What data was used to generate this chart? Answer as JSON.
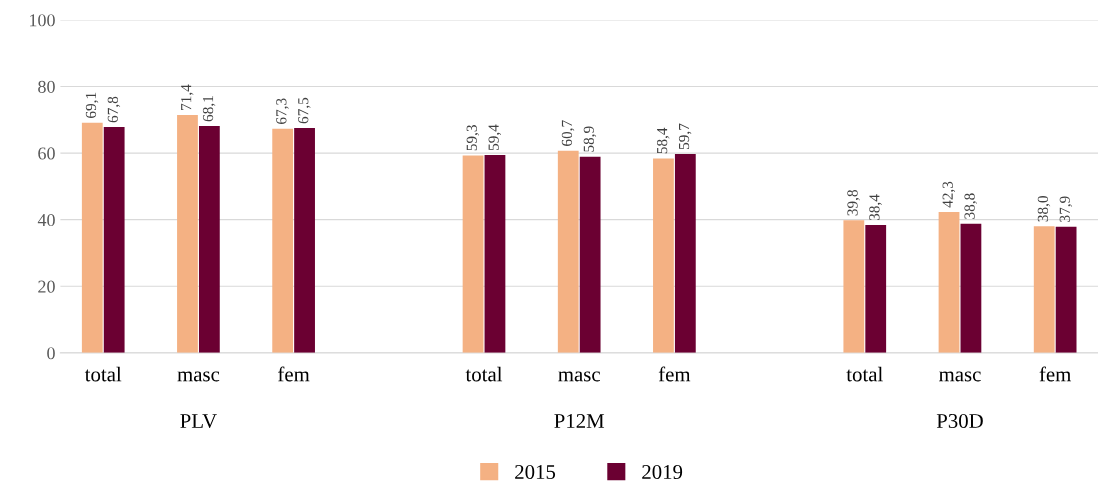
{
  "chart_data": {
    "type": "bar",
    "categories": [
      "total",
      "masc",
      "fem",
      null,
      "total",
      "masc",
      "fem",
      null,
      "total",
      "masc",
      "fem"
    ],
    "series": [
      {
        "name": "2015",
        "color": "#f4b183",
        "values": [
          69.1,
          71.4,
          67.3,
          null,
          59.3,
          60.7,
          58.4,
          null,
          39.8,
          42.3,
          38.0
        ],
        "value_labels": [
          "69,1",
          "71,4",
          "67,3",
          null,
          "59,3",
          "60,7",
          "58,4",
          null,
          "39,8",
          "42,3",
          "38,0"
        ]
      },
      {
        "name": "2019",
        "color": "#6b0032",
        "values": [
          67.8,
          68.1,
          67.5,
          null,
          59.4,
          58.9,
          59.7,
          null,
          38.4,
          38.8,
          37.9
        ],
        "value_labels": [
          "67,8",
          "68,1",
          "67,5",
          null,
          "59,4",
          "58,9",
          "59,7",
          null,
          "38,4",
          "38,8",
          "37,9"
        ]
      }
    ],
    "annotations": [
      "PLV",
      "P12M",
      "P30D"
    ],
    "ylim": [
      0,
      100
    ],
    "yticks": [
      0,
      20,
      40,
      60,
      80,
      100
    ],
    "grid": "y",
    "legend": "bottom"
  }
}
